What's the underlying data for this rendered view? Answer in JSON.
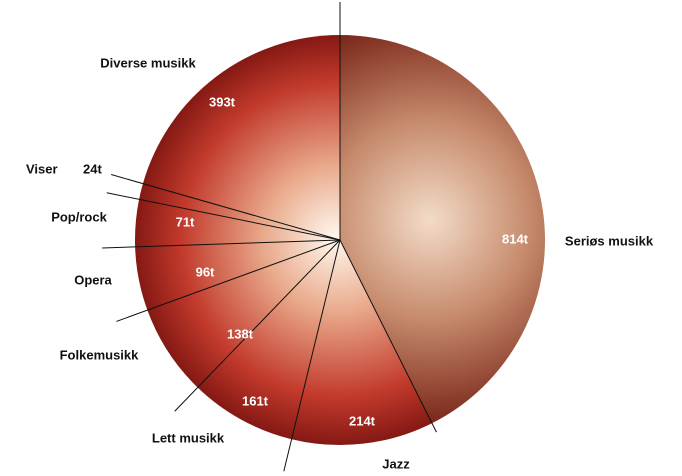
{
  "chart_data": {
    "type": "pie",
    "categories": [
      "Seriøs musikk",
      "Jazz",
      "Lett musikk",
      "Folkemusikk",
      "Opera",
      "Pop/rock",
      "Viser",
      "Diverse musikk"
    ],
    "values": [
      814,
      214,
      161,
      138,
      96,
      71,
      24,
      393
    ],
    "value_labels": [
      "814t",
      "214t",
      "161t",
      "138t",
      "96t",
      "71t",
      "24t",
      "393t"
    ]
  }
}
